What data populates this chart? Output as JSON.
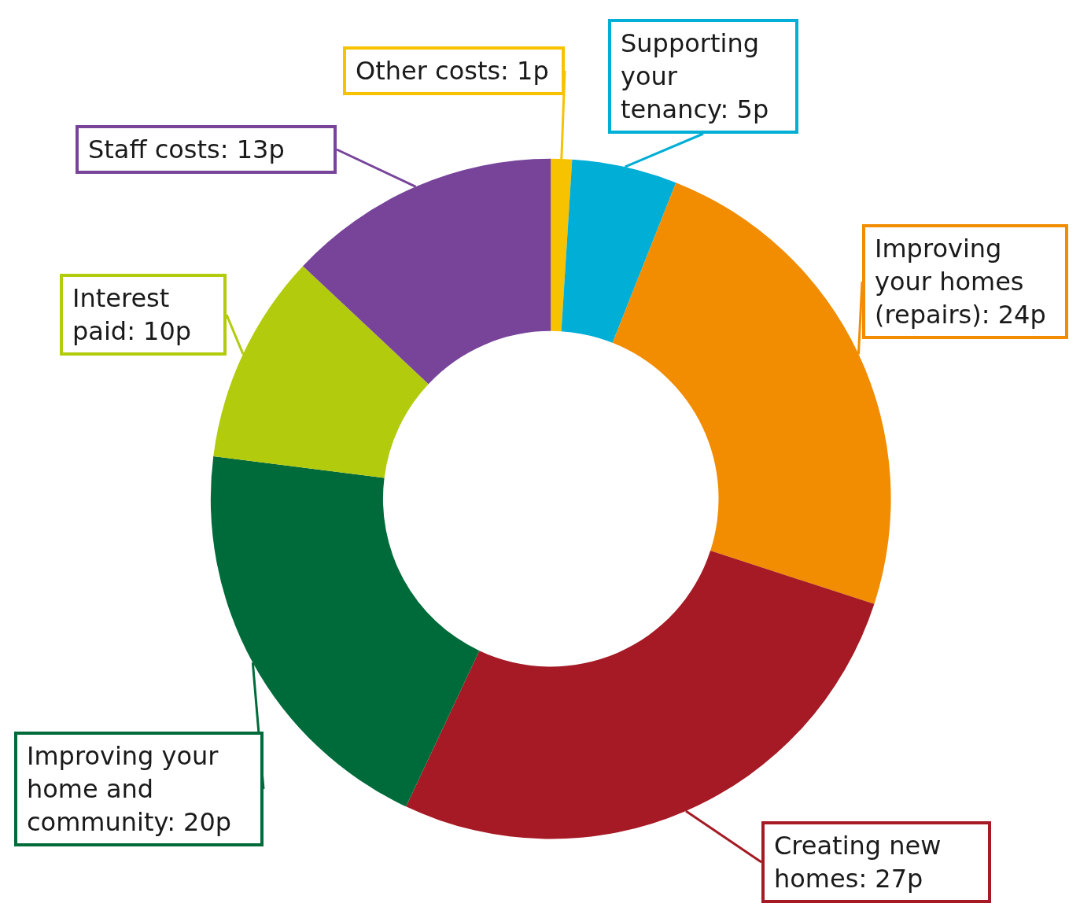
{
  "chart_data": {
    "type": "donut",
    "categories": [
      "Other costs",
      "Supporting your tenancy",
      "Improving your homes (repairs)",
      "Creating new homes",
      "Improving your home and community",
      "Interest paid",
      "Staff costs"
    ],
    "values": [
      1,
      5,
      24,
      27,
      20,
      10,
      13
    ],
    "value_labels": [
      "1p",
      "5p",
      "24p",
      "27p",
      "20p",
      "10p",
      "13p"
    ],
    "colors": [
      "#f7c200",
      "#00aed6",
      "#f28c00",
      "#a51a24",
      "#006b3a",
      "#b2cb0c",
      "#77449a"
    ],
    "legend": false
  }
}
